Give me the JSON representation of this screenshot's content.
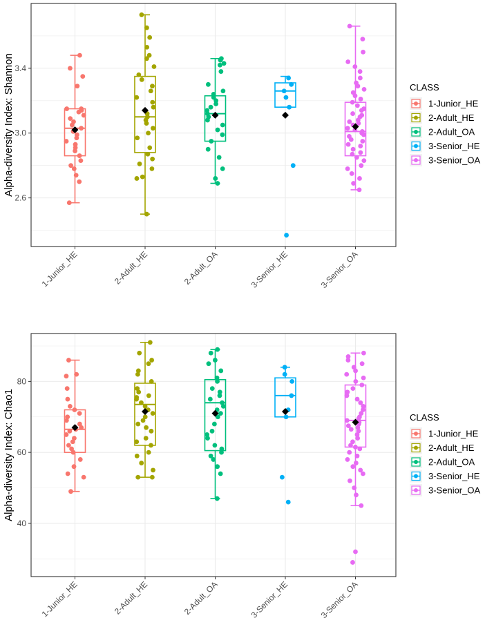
{
  "chart_data": [
    {
      "type": "boxplot",
      "ylabel": "Alpha-diversity Index: Shannon",
      "xlabel": "",
      "categories": [
        "1-Junior_HE",
        "2-Adult_HE",
        "2-Adult_OA",
        "3-Senior_HE",
        "3-Senior_OA"
      ],
      "ylim": [
        2.3,
        3.8
      ],
      "yticks": [
        2.6,
        3.0,
        3.4
      ],
      "ytick_labels": [
        "2.6",
        "3.0",
        "3.4"
      ],
      "boxes": [
        {
          "name": "1-Junior_HE",
          "whisker_low": 2.57,
          "q1": 2.86,
          "median": 3.03,
          "q3": 3.15,
          "whisker_high": 3.48,
          "mean": 3.02
        },
        {
          "name": "2-Adult_HE",
          "whisker_low": 2.5,
          "q1": 2.88,
          "median": 3.1,
          "q3": 3.35,
          "whisker_high": 3.73,
          "mean": 3.14
        },
        {
          "name": "2-Adult_OA",
          "whisker_low": 2.69,
          "q1": 2.95,
          "median": 3.12,
          "q3": 3.23,
          "whisker_high": 3.46,
          "mean": 3.11
        },
        {
          "name": "3-Senior_HE",
          "whisker_low": 3.16,
          "q1": 3.16,
          "median": 3.26,
          "q3": 3.31,
          "whisker_high": 3.35,
          "mean": 3.11
        },
        {
          "name": "3-Senior_OA",
          "whisker_low": 2.65,
          "q1": 2.86,
          "median": 3.01,
          "q3": 3.19,
          "whisker_high": 3.66,
          "mean": 3.04
        }
      ],
      "points": [
        [
          2.57,
          2.7,
          2.74,
          2.78,
          2.8,
          2.83,
          2.86,
          2.89,
          2.91,
          2.93,
          2.95,
          2.97,
          2.99,
          3.01,
          3.03,
          3.05,
          3.07,
          3.09,
          3.11,
          3.13,
          3.14,
          3.15,
          3.15,
          3.29,
          3.35,
          3.4,
          3.48
        ],
        [
          2.5,
          2.72,
          2.73,
          2.78,
          2.81,
          2.84,
          2.87,
          2.91,
          2.97,
          3.0,
          3.03,
          3.06,
          3.08,
          3.1,
          3.12,
          3.16,
          3.19,
          3.22,
          3.26,
          3.29,
          3.33,
          3.36,
          3.41,
          3.46,
          3.48,
          3.53,
          3.59,
          3.65,
          3.73
        ],
        [
          2.69,
          2.72,
          2.78,
          2.85,
          2.9,
          2.95,
          2.99,
          3.02,
          3.05,
          3.08,
          3.1,
          3.12,
          3.14,
          3.16,
          3.18,
          3.2,
          3.22,
          3.24,
          3.26,
          3.3,
          3.38,
          3.42,
          3.43,
          3.45,
          3.46
        ],
        [
          2.37,
          2.8,
          3.16,
          3.22,
          3.26,
          3.3,
          3.34
        ],
        [
          2.65,
          2.69,
          2.72,
          2.75,
          2.78,
          2.8,
          2.83,
          2.85,
          2.87,
          2.88,
          2.9,
          2.92,
          2.93,
          2.95,
          2.96,
          2.98,
          2.99,
          3.0,
          3.01,
          3.02,
          3.03,
          3.05,
          3.06,
          3.07,
          3.08,
          3.1,
          3.11,
          3.12,
          3.14,
          3.15,
          3.17,
          3.19,
          3.21,
          3.23,
          3.25,
          3.27,
          3.29,
          3.31,
          3.34,
          3.38,
          3.41,
          3.44,
          3.5,
          3.58,
          3.66
        ]
      ],
      "legend": {
        "title": "CLASS",
        "entries": [
          "1-Junior_HE",
          "2-Adult_HE",
          "2-Adult_OA",
          "3-Senior_HE",
          "3-Senior_OA"
        ]
      }
    },
    {
      "type": "boxplot",
      "ylabel": "Alpha-diversity Index: Chao1",
      "xlabel": "",
      "categories": [
        "1-Junior_HE",
        "2-Adult_HE",
        "2-Adult_OA",
        "3-Senior_HE",
        "3-Senior_OA"
      ],
      "ylim": [
        25,
        93.5
      ],
      "yticks": [
        40,
        60,
        80
      ],
      "ytick_labels": [
        "40",
        "60",
        "80"
      ],
      "boxes": [
        {
          "name": "1-Junior_HE",
          "whisker_low": 49,
          "q1": 60,
          "median": 66.5,
          "q3": 72,
          "whisker_high": 86,
          "mean": 67
        },
        {
          "name": "2-Adult_HE",
          "whisker_low": 53,
          "q1": 62,
          "median": 73.5,
          "q3": 79.5,
          "whisker_high": 91,
          "mean": 71.5
        },
        {
          "name": "2-Adult_OA",
          "whisker_low": 47,
          "q1": 60.5,
          "median": 74,
          "q3": 80.5,
          "whisker_high": 89,
          "mean": 71
        },
        {
          "name": "3-Senior_HE",
          "whisker_low": 70,
          "q1": 70,
          "median": 76,
          "q3": 81,
          "whisker_high": 84,
          "mean": 71.5
        },
        {
          "name": "3-Senior_OA",
          "whisker_low": 45,
          "q1": 61.5,
          "median": 69,
          "q3": 79,
          "whisker_high": 88,
          "mean": 68.5
        }
      ],
      "points": [
        [
          49,
          53,
          54,
          56,
          58,
          60,
          61,
          62,
          63,
          64,
          65,
          66,
          66.5,
          67,
          68,
          69,
          70,
          71,
          72,
          73,
          75,
          78,
          81.5,
          82,
          86
        ],
        [
          53,
          53,
          55,
          57,
          59,
          60,
          62,
          63,
          64,
          66,
          67,
          68,
          69,
          70,
          71,
          72,
          73,
          74,
          75,
          75.5,
          76,
          77,
          78,
          80,
          82,
          83,
          85,
          86,
          88,
          91
        ],
        [
          47,
          54,
          56,
          58,
          59,
          60,
          61,
          62,
          64,
          65,
          66,
          68,
          70,
          71,
          72,
          73,
          74,
          75,
          76,
          77,
          78,
          80,
          81,
          83,
          85,
          86,
          88,
          89
        ],
        [
          46,
          53,
          70,
          72,
          76,
          80,
          82,
          84
        ],
        [
          29,
          32,
          45,
          48,
          50,
          52,
          54,
          55,
          56,
          57,
          58,
          59,
          60,
          61,
          61.5,
          62,
          63,
          64,
          65,
          66,
          66.5,
          67,
          67.5,
          68,
          68.5,
          69,
          69.5,
          70,
          71,
          72,
          73,
          74,
          75,
          76,
          77,
          78,
          79,
          80,
          81,
          82,
          83,
          84,
          85,
          86,
          87,
          88
        ]
      ],
      "legend": {
        "title": "CLASS",
        "entries": [
          "1-Junior_HE",
          "2-Adult_HE",
          "2-Adult_OA",
          "3-Senior_HE",
          "3-Senior_OA"
        ]
      }
    }
  ],
  "colors": {
    "1-Junior_HE": "#F8766D",
    "2-Adult_HE": "#A3A500",
    "2-Adult_OA": "#00BF7D",
    "3-Senior_HE": "#00B0F6",
    "3-Senior_OA": "#E76BF3",
    "mean_marker": "#000000",
    "grid": "#EBEBEB",
    "panel_border": "#333333"
  }
}
